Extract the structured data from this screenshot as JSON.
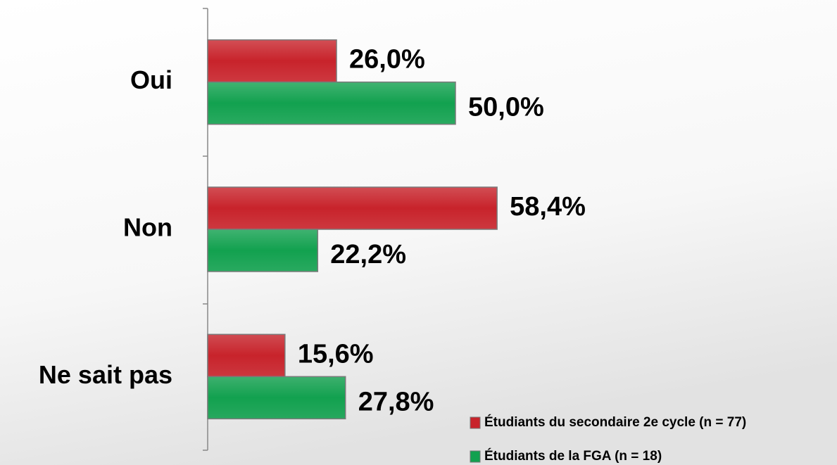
{
  "chart_data": {
    "type": "hbar",
    "categories": [
      "Oui",
      "Non",
      "Ne sait pas"
    ],
    "series": [
      {
        "name": "Étudiants du secondaire  2e cycle (n = 77)",
        "color": "#c8232b",
        "values": [
          26.0,
          58.4,
          15.6
        ],
        "value_labels": [
          "26,0%",
          "58,4%",
          "15,6%"
        ]
      },
      {
        "name": "Étudiants de la FGA (n = 18)",
        "color": "#12a14f",
        "values": [
          50.0,
          22.2,
          27.8
        ],
        "value_labels": [
          "50,0%",
          "22,2%",
          "27,8%"
        ]
      }
    ],
    "xlim": [
      0,
      100
    ],
    "legend": "lower right"
  }
}
